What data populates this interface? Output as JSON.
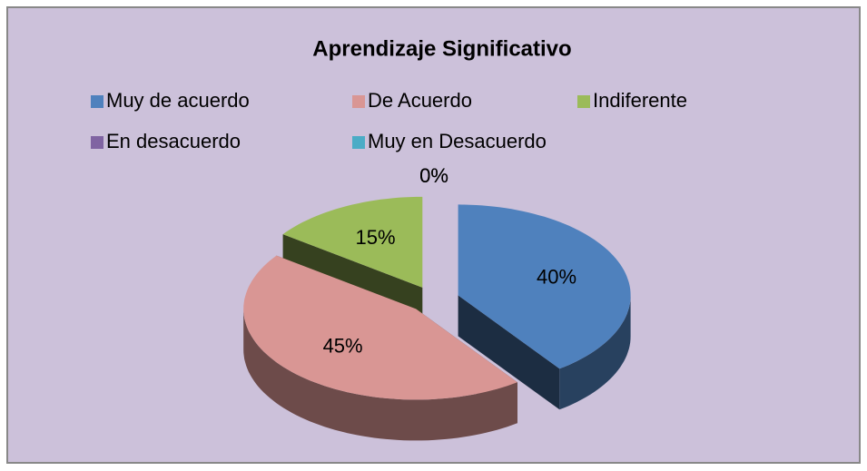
{
  "chart_data": {
    "type": "pie",
    "title": "Aprendizaje Significativo",
    "categories": [
      "Muy de acuerdo",
      "De Acuerdo",
      "Indiferente",
      "En desacuerdo",
      "Muy en Desacuerdo"
    ],
    "values": [
      40,
      45,
      15,
      0,
      0
    ],
    "value_labels": [
      "40%",
      "45%",
      "15%",
      "0%",
      "0%"
    ],
    "colors": [
      "#4f81bd",
      "#d99694",
      "#9bbb59",
      "#8064a2",
      "#4bacc6"
    ]
  }
}
